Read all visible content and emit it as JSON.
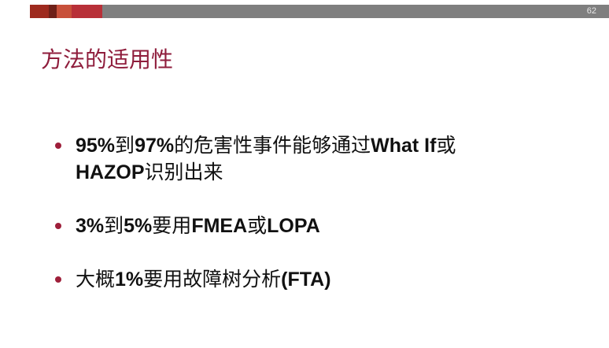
{
  "slide": {
    "page_number": "62",
    "title": "方法的适用性",
    "accent_colors": [
      "#9e2a1e",
      "#6e2018",
      "#c8503a",
      "#b83038",
      "#7f7f7f"
    ],
    "title_color": "#8f1d3c",
    "bullet_icon": "bullet-dot-icon",
    "bullets": [
      {
        "parts": [
          [
            "b",
            "95%"
          ],
          [
            "n",
            "到"
          ],
          [
            "b",
            "97%"
          ],
          [
            "n",
            "的危害性事件能够通过"
          ],
          [
            "b",
            "What If"
          ],
          [
            "n",
            "或"
          ],
          [
            "br",
            ""
          ],
          [
            "b",
            "HAZOP"
          ],
          [
            "n",
            "识别出来"
          ]
        ]
      },
      {
        "parts": [
          [
            "b",
            "3%"
          ],
          [
            "n",
            "到"
          ],
          [
            "b",
            "5%"
          ],
          [
            "n",
            "要用"
          ],
          [
            "b",
            "FMEA"
          ],
          [
            "n",
            "或"
          ],
          [
            "b",
            "LOPA"
          ]
        ]
      },
      {
        "parts": [
          [
            "n",
            "大概"
          ],
          [
            "b",
            "1%"
          ],
          [
            "n",
            "要用故障树分析"
          ],
          [
            "b",
            "(FTA)"
          ]
        ]
      }
    ]
  }
}
